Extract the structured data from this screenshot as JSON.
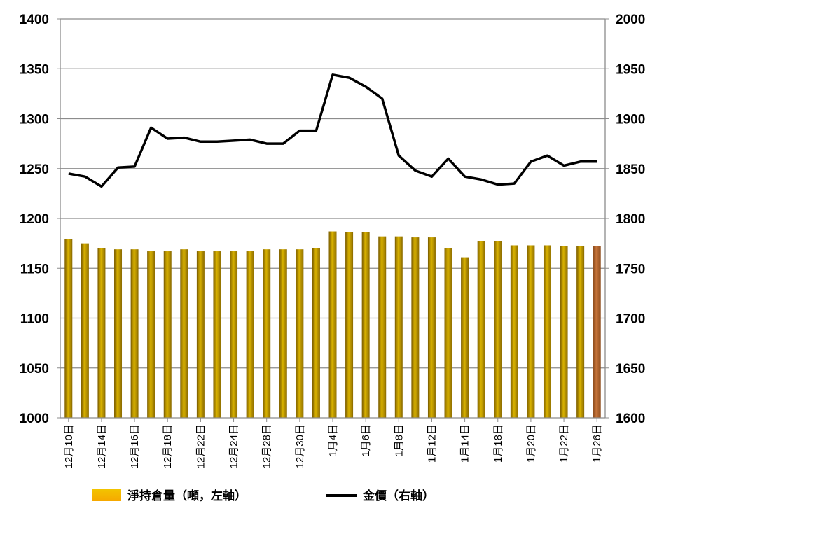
{
  "chart_data": {
    "type": "bar",
    "categories": [
      "12月10日",
      "",
      "12月14日",
      "",
      "12月16日",
      "",
      "12月18日",
      "",
      "12月22日",
      "",
      "12月24日",
      "",
      "12月28日",
      "",
      "12月30日",
      "",
      "1月4日",
      "",
      "1月6日",
      "",
      "1月8日",
      "",
      "1月12日",
      "",
      "1月14日",
      "",
      "1月18日",
      "",
      "1月20日",
      "",
      "1月22日",
      "",
      "1月26日"
    ],
    "series": [
      {
        "name": "淨持倉量（噸，左軸）",
        "axis": "left",
        "type": "bar",
        "color": "#c9a000",
        "last_bar_color": "#b5652c",
        "values": [
          1179,
          1175,
          1170,
          1169,
          1169,
          1167,
          1167,
          1169,
          1167,
          1167,
          1167,
          1167,
          1169,
          1169,
          1169,
          1170,
          1187,
          1186,
          1186,
          1182,
          1182,
          1181,
          1181,
          1170,
          1161,
          1177,
          1177,
          1173,
          1173,
          1173,
          1172,
          1172,
          1172
        ]
      },
      {
        "name": "金價（右軸）",
        "axis": "right",
        "type": "line",
        "color": "#000000",
        "values": [
          1845,
          1842,
          1832,
          1851,
          1852,
          1891,
          1880,
          1881,
          1877,
          1877,
          1878,
          1879,
          1875,
          1875,
          1888,
          1888,
          1944,
          1941,
          1932,
          1920,
          1863,
          1848,
          1842,
          1860,
          1842,
          1839,
          1834,
          1835,
          1857,
          1863,
          1853,
          1857,
          1857
        ]
      }
    ],
    "yaxis_left": {
      "min": 1000,
      "max": 1400,
      "ticks": [
        1000,
        1050,
        1100,
        1150,
        1200,
        1250,
        1300,
        1350,
        1400
      ]
    },
    "yaxis_right": {
      "min": 1600,
      "max": 2000,
      "ticks": [
        1600,
        1650,
        1700,
        1750,
        1800,
        1850,
        1900,
        1950,
        2000
      ]
    },
    "grid": true,
    "legend_position": "bottom",
    "title": "",
    "xlabel": "",
    "ylabel": ""
  }
}
